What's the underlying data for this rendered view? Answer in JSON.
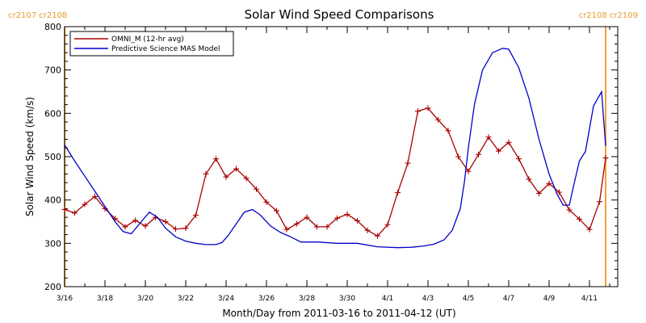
{
  "chart_data": {
    "type": "line",
    "title": "Solar Wind Speed Comparisons",
    "xlabel": "Month/Day from 2011-03-16 to 2011-04-12 (UT)",
    "ylabel": "Solar Wind Speed (km/s)",
    "xlim": [
      0,
      27.4
    ],
    "ylim": [
      200,
      800
    ],
    "yticks": [
      200,
      300,
      400,
      500,
      600,
      700,
      800
    ],
    "xticks": [
      {
        "day": 0,
        "label": "3/16"
      },
      {
        "day": 2,
        "label": "3/18"
      },
      {
        "day": 4,
        "label": "3/20"
      },
      {
        "day": 6,
        "label": "3/22"
      },
      {
        "day": 8,
        "label": "3/24"
      },
      {
        "day": 10,
        "label": "3/26"
      },
      {
        "day": 12,
        "label": "3/28"
      },
      {
        "day": 14,
        "label": "3/30"
      },
      {
        "day": 16,
        "label": "4/1"
      },
      {
        "day": 18,
        "label": "4/3"
      },
      {
        "day": 20,
        "label": "4/5"
      },
      {
        "day": 22,
        "label": "4/7"
      },
      {
        "day": 24,
        "label": "4/9"
      },
      {
        "day": 26,
        "label": "4/11"
      }
    ],
    "carrington_labels": {
      "left": "cr2107 cr2108",
      "right": "cr2108 cr2109"
    },
    "carrington_marker_days": [
      0,
      26.8
    ],
    "grid": false,
    "legend_position": "top-left",
    "series": [
      {
        "name": "OMNI_M (12-hr avg)",
        "color": "#aa0000",
        "markers": true,
        "x": [
          0,
          0.5,
          1,
          1.5,
          2,
          2.5,
          3,
          3.5,
          4,
          4.5,
          5,
          5.5,
          6,
          6.5,
          7,
          7.5,
          8,
          8.5,
          9,
          9.5,
          10,
          10.5,
          11,
          11.5,
          12,
          12.5,
          13,
          13.5,
          14,
          14.5,
          15,
          15.5,
          16,
          16.5,
          17,
          17.5,
          18,
          18.5,
          19,
          19.5,
          20,
          20.5,
          21,
          21.5,
          22,
          22.5,
          23,
          23.5,
          24,
          24.5,
          25,
          25.5,
          26,
          26.5,
          26.8
        ],
        "y": [
          378,
          370,
          390,
          408,
          380,
          357,
          338,
          353,
          340,
          360,
          350,
          333,
          335,
          365,
          460,
          495,
          453,
          472,
          450,
          425,
          395,
          375,
          332,
          345,
          360,
          338,
          338,
          358,
          367,
          352,
          330,
          317,
          343,
          417,
          485,
          605,
          612,
          585,
          560,
          500,
          466,
          505,
          545,
          513,
          533,
          495,
          448,
          415,
          438,
          418,
          377,
          356,
          332,
          396,
          497
        ]
      },
      {
        "name": "Predictive Science MAS Model",
        "color": "#0000cc",
        "markers": false,
        "x": [
          0,
          0.5,
          1,
          1.5,
          2,
          2.5,
          2.9,
          3.3,
          3.8,
          4.2,
          4.6,
          5,
          5.5,
          6,
          6.5,
          7,
          7.5,
          7.8,
          8.1,
          8.5,
          8.9,
          9.3,
          9.7,
          10.2,
          10.7,
          11.2,
          11.7,
          12.5,
          13.5,
          14.5,
          15.5,
          16.5,
          17.2,
          17.8,
          18.3,
          18.8,
          19.2,
          19.6,
          19.8,
          20,
          20.3,
          20.7,
          21.2,
          21.7,
          22,
          22.5,
          23,
          23.5,
          24,
          24.4,
          24.7,
          25,
          25.2,
          25.5,
          25.8,
          26.2,
          26.6,
          26.8
        ],
        "y": [
          527,
          490,
          455,
          420,
          385,
          350,
          327,
          322,
          350,
          372,
          360,
          335,
          315,
          305,
          300,
          297,
          297,
          302,
          318,
          345,
          372,
          378,
          365,
          340,
          325,
          315,
          303,
          303,
          300,
          300,
          292,
          290,
          291,
          294,
          298,
          308,
          330,
          380,
          440,
          520,
          620,
          700,
          740,
          750,
          748,
          705,
          635,
          540,
          460,
          413,
          388,
          388,
          430,
          490,
          512,
          617,
          650,
          525
        ]
      }
    ]
  }
}
